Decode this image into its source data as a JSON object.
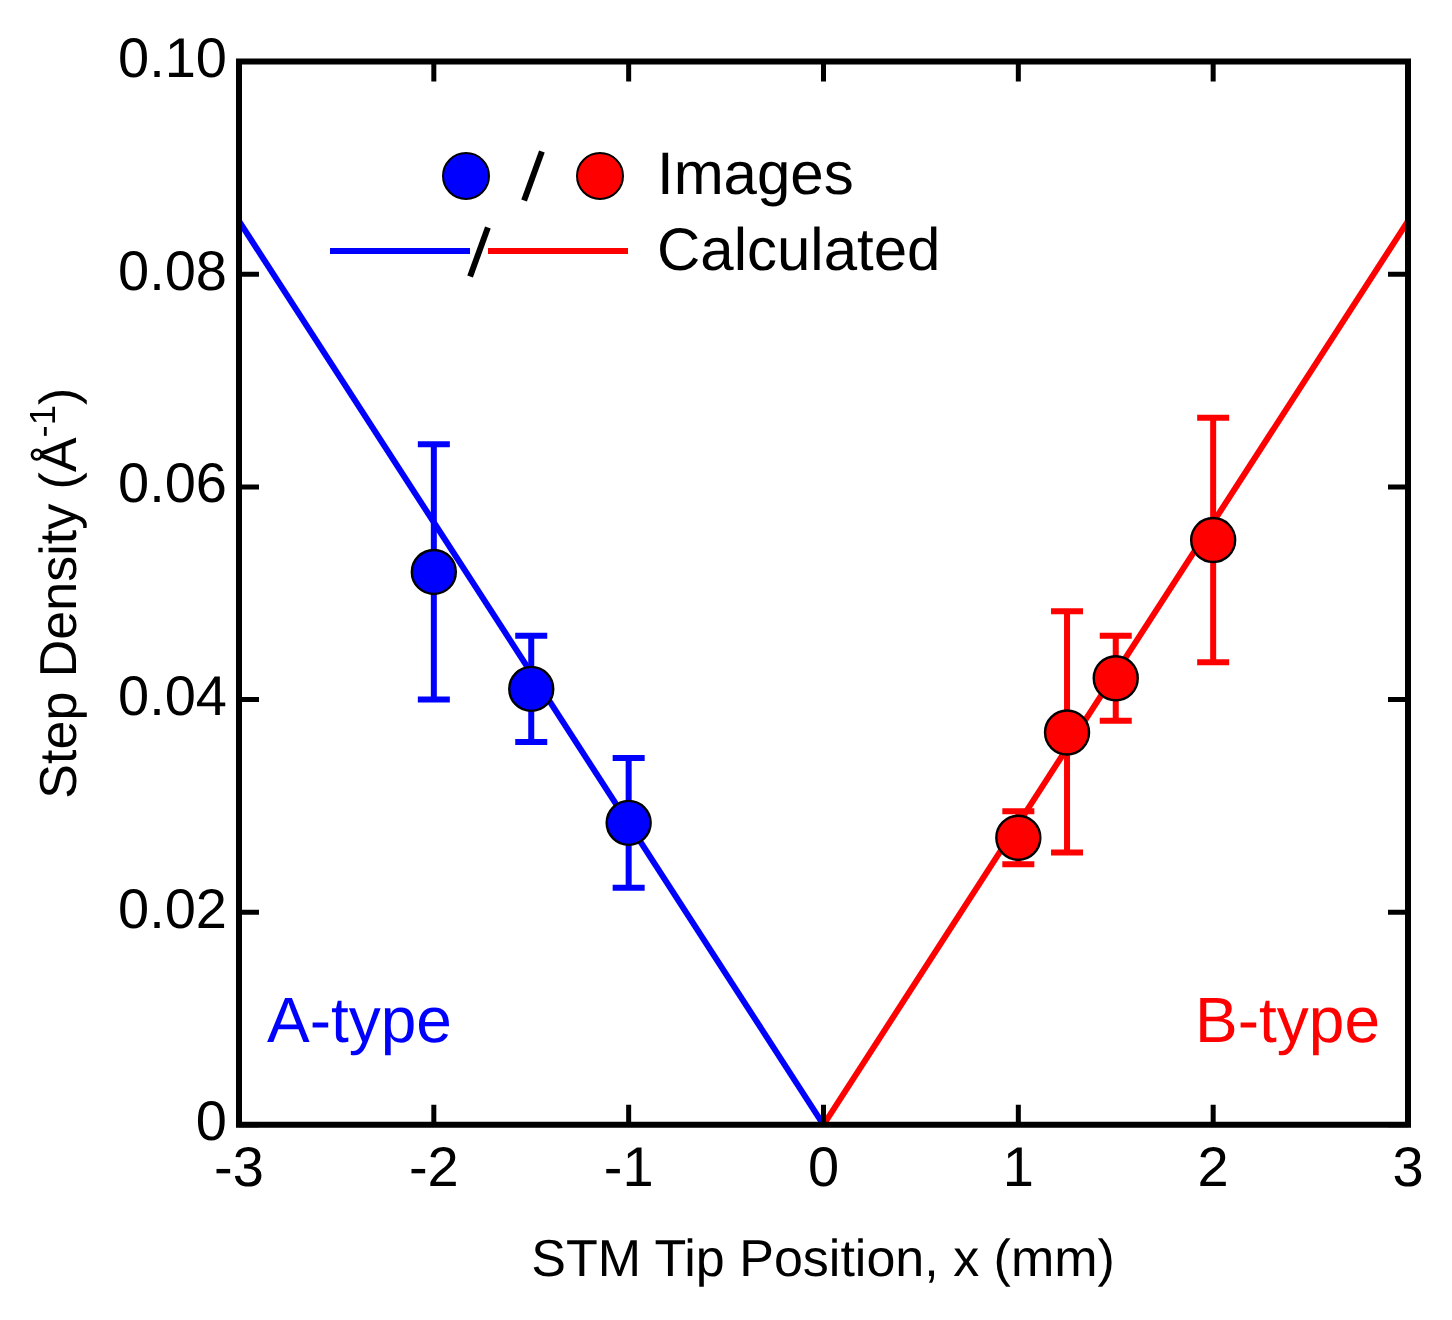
{
  "chart_data": {
    "type": "scatter",
    "xlabel": "STM Tip Position, x (mm)",
    "ylabel": "Step Density (Å$^{-1}$)",
    "xlim": [
      -3,
      3
    ],
    "xticks": [
      -3,
      -2,
      -1,
      0,
      1,
      2,
      3
    ],
    "ylim": [
      0,
      0.1
    ],
    "yticks": [
      0,
      0.02,
      0.04,
      0.06,
      0.08,
      {
        "value": 0.1,
        "label": "0.10"
      }
    ],
    "grid": false,
    "legend": "top left",
    "annotations": [
      "A-type",
      "B-type"
    ],
    "series": [
      {
        "type": "scatter",
        "marker": "circle",
        "color": "#0000ff",
        "x": [
          -2,
          -1.5,
          -1
        ],
        "values": [
          0.052,
          0.041,
          0.0284
        ],
        "errors": [
          [
            0.04,
            0.064
          ],
          [
            0.036,
            0.046
          ],
          [
            0.0223,
            0.0345
          ]
        ]
      },
      {
        "type": "scatter",
        "marker": "circle",
        "name": "Images",
        "color": "#ff0000",
        "x": [
          1,
          1.25,
          1.5,
          2
        ],
        "values": [
          0.027,
          0.0369,
          0.042,
          0.055
        ],
        "errors": [
          [
            0.0245,
            0.0295
          ],
          [
            0.0256,
            0.0483
          ],
          [
            0.038,
            0.046
          ],
          [
            0.0435,
            0.0665
          ]
        ]
      },
      {
        "type": "line",
        "marker": "none",
        "color": "#0000ff",
        "x": [
          -3,
          0
        ],
        "values": [
          0.085,
          0
        ]
      },
      {
        "type": "line",
        "marker": "none",
        "name": "Calculated",
        "color": "#ff0000",
        "x": [
          0,
          3
        ],
        "values": [
          0,
          0.085
        ]
      }
    ]
  }
}
